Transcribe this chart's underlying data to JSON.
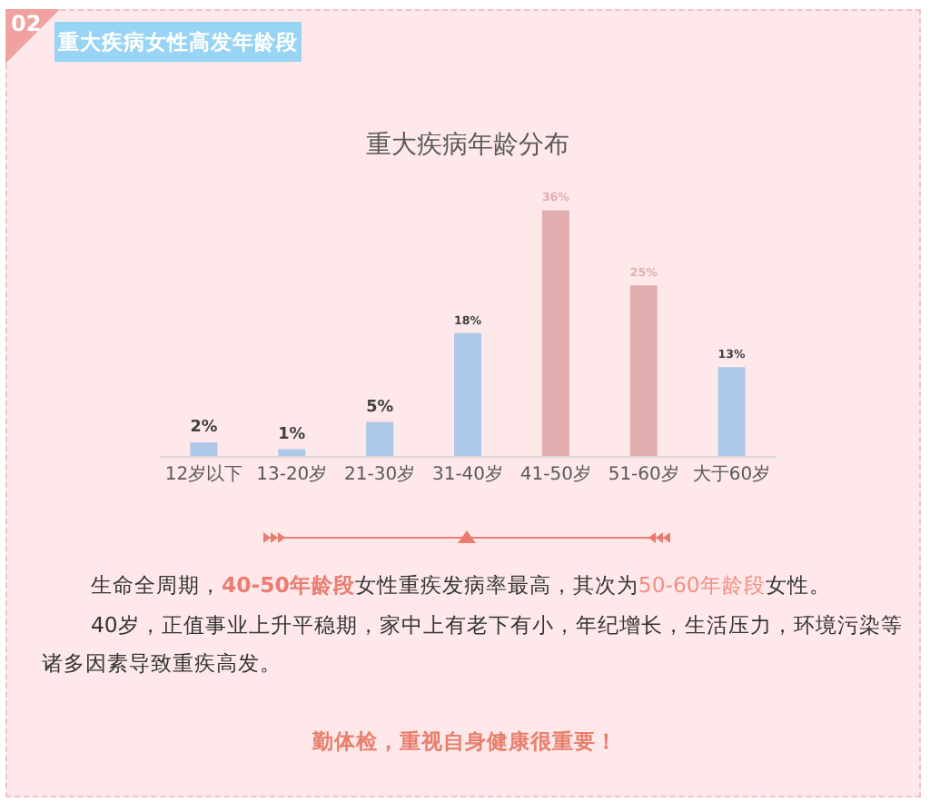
{
  "chart_data": {
    "type": "bar",
    "title": "重大疾病年龄分布",
    "categories": [
      "12岁以下",
      "13-20岁",
      "21-30岁",
      "31-40岁",
      "41-50岁",
      "51-60岁",
      "大于60岁"
    ],
    "values": [
      2,
      1,
      5,
      18,
      36,
      25,
      13
    ],
    "colors": [
      "#adc8e9",
      "#adc8e9",
      "#adc8e9",
      "#adc8e9",
      "#e2adae",
      "#e2adae",
      "#adc8e9"
    ],
    "value_labels": [
      "2%",
      "1%",
      "5%",
      "18%",
      "36%",
      "25%",
      "13%"
    ],
    "annotations": [
      "02",
      "重大疾病女性高发年龄段",
      "生命全周期，",
      "40-50年龄段",
      "女性重疾发病率最高，其次为",
      "50-60年龄段",
      "女性。",
      "40岁，正值事业上升平稳期，家中上有老下有小，年纪增长，生活压力，环境污染等诸多因素导致重疾高发。",
      "勤体检，重视自身健康很重要！"
    ]
  }
}
